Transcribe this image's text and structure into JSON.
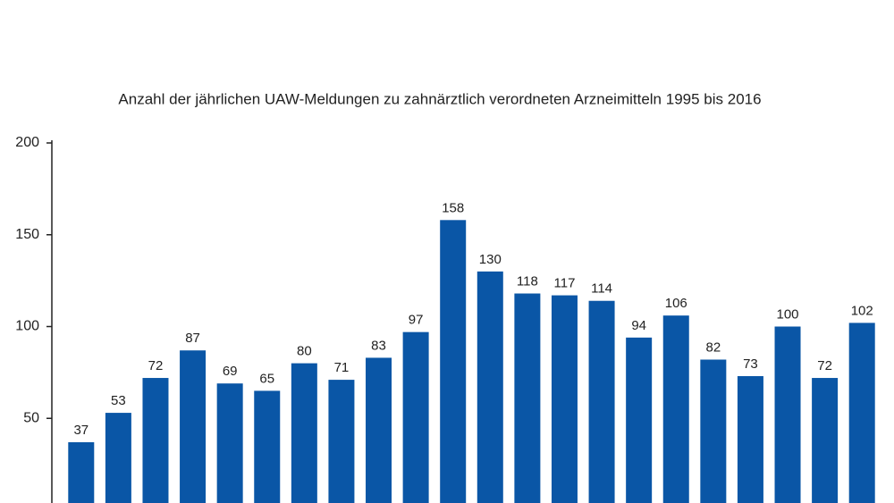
{
  "chart_data": {
    "type": "bar",
    "title": "Anzahl der jährlichen UAW-Meldungen zu zahnärztlich verordneten Arzneimitteln 1995 bis 2016",
    "categories": [
      null,
      null,
      null,
      null,
      null,
      null,
      null,
      null,
      null,
      null,
      null,
      null,
      null,
      null,
      null,
      null,
      null,
      null,
      null,
      null,
      null,
      null
    ],
    "values": [
      37,
      53,
      72,
      87,
      69,
      65,
      80,
      71,
      83,
      97,
      158,
      130,
      118,
      117,
      114,
      94,
      106,
      82,
      73,
      100,
      72,
      102
    ],
    "color": "#0a56a6",
    "ylim": [
      0,
      200
    ],
    "yticks": [
      50,
      100,
      150,
      200
    ],
    "grid": false
  }
}
